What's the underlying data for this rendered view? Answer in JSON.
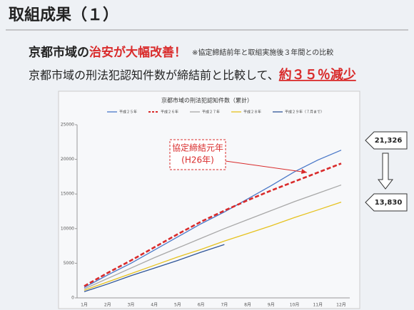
{
  "header": {
    "title": "取組成果（１）",
    "line1": {
      "black": "京都市域の",
      "red": "治安が大幅改善！",
      "note": "※協定締結前年と取組実施後３年間との比較"
    },
    "line2": {
      "black": "京都市域の刑法犯認知件数が締結前と比較して、",
      "red": "約３５％減少"
    }
  },
  "chart_data": {
    "type": "line",
    "title": "京都市域の刑法犯認知件数（累計）",
    "categories": [
      "1月",
      "2月",
      "3月",
      "4月",
      "5月",
      "6月",
      "7月",
      "8月",
      "9月",
      "10月",
      "11月",
      "12月"
    ],
    "series": [
      {
        "name": "平成２５年",
        "color": "#4a78c8",
        "values": [
          1500,
          3300,
          5000,
          6900,
          8800,
          10700,
          12400,
          14300,
          16200,
          18200,
          19900,
          21326
        ]
      },
      {
        "name": "平成２６年",
        "color": "#d92b2b",
        "dashed": true,
        "values": [
          1700,
          3600,
          5400,
          7300,
          9200,
          11000,
          12600,
          14100,
          15500,
          16800,
          18100,
          19400
        ]
      },
      {
        "name": "平成２７年",
        "color": "#a8a8a8",
        "values": [
          1300,
          2800,
          4300,
          5800,
          7200,
          8600,
          10000,
          11300,
          12600,
          13900,
          15100,
          16300
        ]
      },
      {
        "name": "平成２８年",
        "color": "#e6c21e",
        "values": [
          1100,
          2300,
          3500,
          4700,
          5900,
          7000,
          8200,
          9300,
          10400,
          11600,
          12700,
          13830
        ]
      },
      {
        "name": "平成２９年（７月まで）",
        "color": "#2f5597",
        "values": [
          900,
          2000,
          3200,
          4300,
          5400,
          6600,
          7700,
          null,
          null,
          null,
          null,
          null
        ]
      }
    ],
    "ylim": [
      0,
      25000
    ],
    "yticks": [
      0,
      5000,
      10000,
      15000,
      20000,
      25000
    ],
    "grid": false,
    "annotations": {
      "callout": [
        "協定締結元年",
        "(H26年)"
      ],
      "badges": [
        {
          "value": 21326,
          "label": "21,326"
        },
        {
          "value": 13830,
          "label": "13,830"
        }
      ]
    }
  }
}
